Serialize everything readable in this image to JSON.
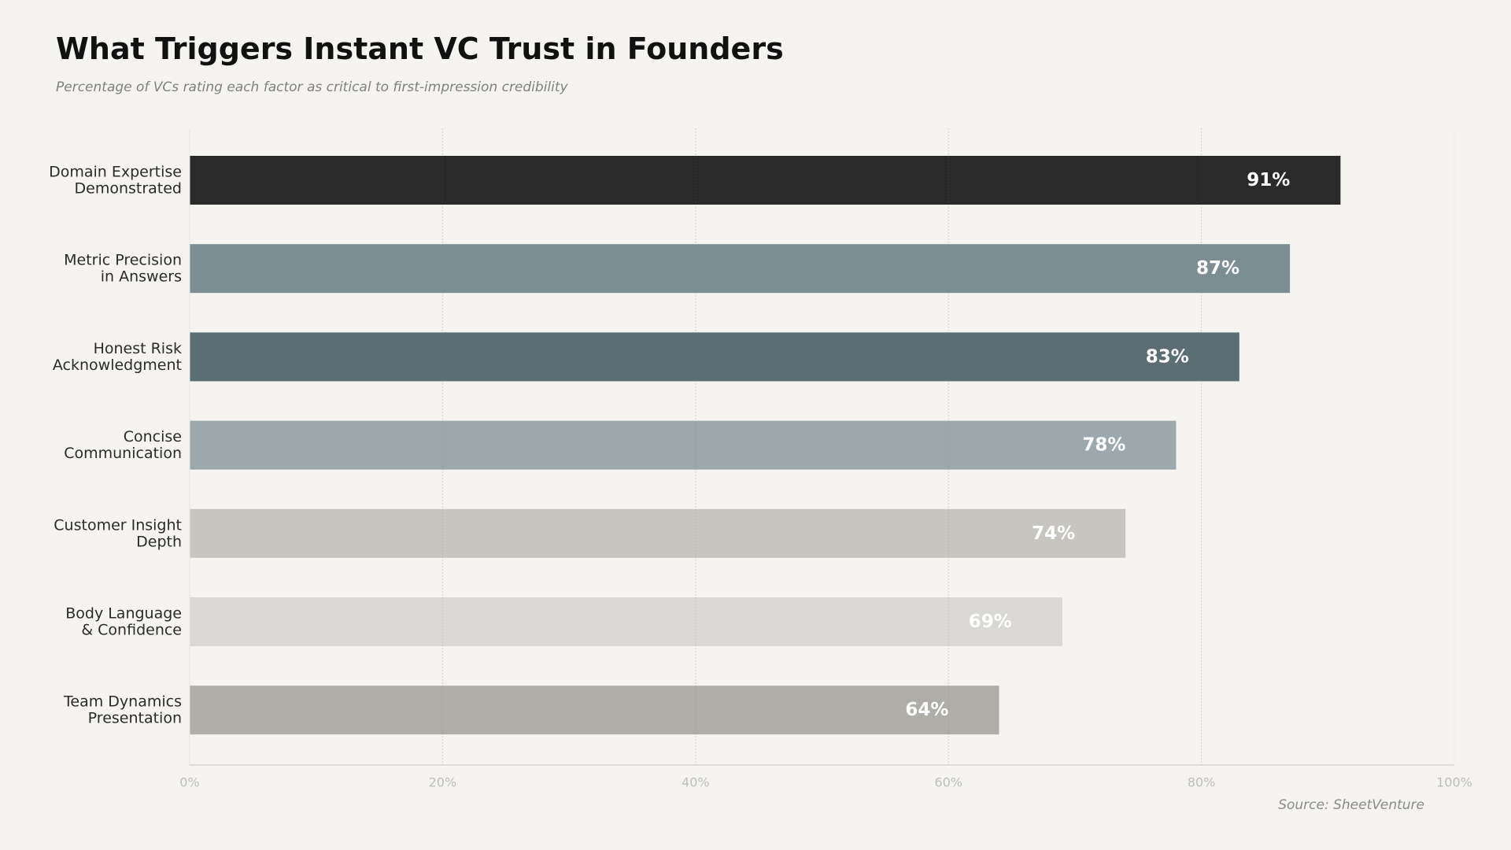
{
  "title": "What Triggers Instant VC Trust in Founders",
  "subtitle": "Percentage of VCs rating each factor as critical to first-impression credibility",
  "source": "Source: SheetVenture",
  "chart_data": {
    "type": "bar",
    "orientation": "horizontal",
    "categories": [
      [
        "Domain Expertise",
        "Demonstrated"
      ],
      [
        "Metric Precision",
        "in Answers"
      ],
      [
        "Honest Risk",
        "Acknowledgment"
      ],
      [
        "Concise",
        "Communication"
      ],
      [
        "Customer Insight",
        "Depth"
      ],
      [
        "Body Language",
        "& Confidence"
      ],
      [
        "Team Dynamics",
        "Presentation"
      ]
    ],
    "values": [
      91,
      87,
      83,
      78,
      74,
      69,
      64
    ],
    "value_labels": [
      "91%",
      "87%",
      "83%",
      "78%",
      "74%",
      "69%",
      "64%"
    ],
    "colors": [
      "#2a2a2a",
      "#7d8e93",
      "#5b6e74",
      "#9ca8ab",
      "#c7c5c0",
      "#d9d8d4",
      "#aeada8"
    ],
    "xlim": [
      0,
      100
    ],
    "xticks": [
      0,
      20,
      40,
      60,
      80,
      100
    ],
    "xtick_labels": [
      "0%",
      "20%",
      "40%",
      "60%",
      "80%",
      "100%"
    ],
    "grid": true,
    "xlabel": "",
    "ylabel": ""
  }
}
